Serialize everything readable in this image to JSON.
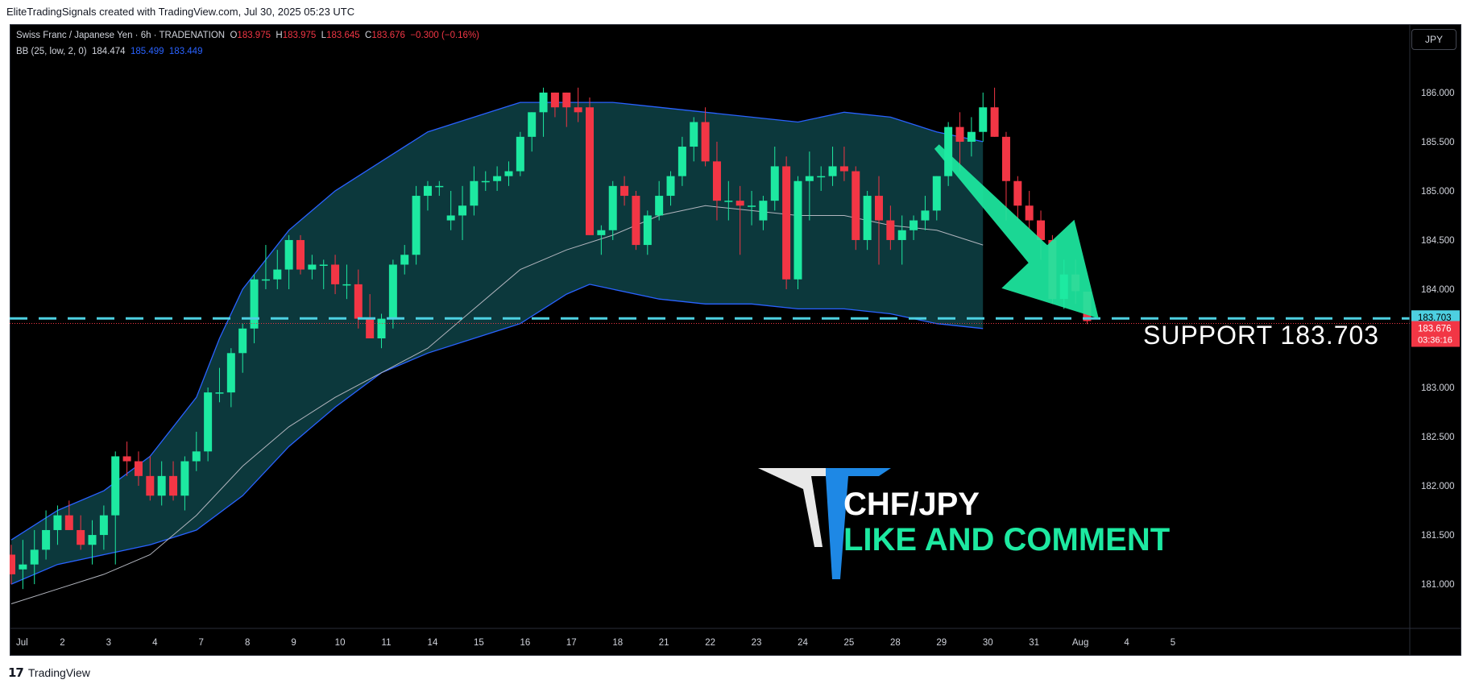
{
  "header": {
    "attribution": "EliteTradingSignals created with TradingView.com, Jul 30, 2025 05:23 UTC"
  },
  "legend": {
    "symbol": "Swiss Franc / Japanese Yen · 6h · TRADENATION",
    "o_label": "O",
    "o": "183.975",
    "h_label": "H",
    "h": "183.975",
    "l_label": "L",
    "l": "183.645",
    "c_label": "C",
    "c": "183.676",
    "change": "−0.300 (−0.16%)",
    "bb_label": "BB (25, low, 2, 0)",
    "bb_basis": "184.474",
    "bb_upper": "185.499",
    "bb_lower": "183.449"
  },
  "currency_button": "JPY",
  "price_tags": {
    "support_tag": "183.703",
    "last_price": "183.676",
    "countdown": "03:36:16"
  },
  "annotations": {
    "support_text": "SUPPORT  183.703",
    "brand_pair": "CHF/JPY",
    "brand_cta": "LIKE AND COMMENT"
  },
  "footer": {
    "logo": "17",
    "text": "TradingView"
  },
  "colors": {
    "up": "#1de9a1",
    "down": "#f23645",
    "band_fill": "#0d3b3f",
    "band_line": "#2962ff",
    "basis": "#b2b5be",
    "support": "#4dd0e1",
    "arrow": "#1de9a1",
    "background": "#000000"
  },
  "chart_data": {
    "type": "candlestick",
    "title": "Swiss Franc / Japanese Yen · 6h · TRADENATION",
    "timeframe": "6h",
    "y_ticks": [
      181.0,
      181.5,
      182.0,
      182.5,
      183.0,
      183.5,
      184.0,
      184.5,
      185.0,
      185.5,
      186.0
    ],
    "ylim": [
      180.55,
      186.45
    ],
    "x_tick_labels": [
      "Jul",
      "2",
      "3",
      "4",
      "7",
      "8",
      "9",
      "10",
      "11",
      "14",
      "15",
      "16",
      "17",
      "18",
      "21",
      "22",
      "23",
      "24",
      "25",
      "28",
      "29",
      "30",
      "31",
      "Aug",
      "4",
      "5"
    ],
    "x_tick_index": [
      0,
      4,
      8,
      12,
      16,
      20,
      24,
      28,
      32,
      36,
      40,
      44,
      48,
      52,
      56,
      60,
      64,
      68,
      72,
      76,
      80,
      84,
      88,
      92,
      96,
      100
    ],
    "support_level": 183.703,
    "last_price": 183.676,
    "candles": [
      {
        "o": 181.3,
        "h": 181.4,
        "l": 181.0,
        "c": 181.1
      },
      {
        "o": 181.15,
        "h": 181.45,
        "l": 180.95,
        "c": 181.2
      },
      {
        "o": 181.2,
        "h": 181.55,
        "l": 181.0,
        "c": 181.35
      },
      {
        "o": 181.35,
        "h": 181.75,
        "l": 181.25,
        "c": 181.55
      },
      {
        "o": 181.55,
        "h": 181.8,
        "l": 181.4,
        "c": 181.7
      },
      {
        "o": 181.7,
        "h": 181.85,
        "l": 181.55,
        "c": 181.55
      },
      {
        "o": 181.55,
        "h": 181.7,
        "l": 181.35,
        "c": 181.4
      },
      {
        "o": 181.4,
        "h": 181.65,
        "l": 181.2,
        "c": 181.5
      },
      {
        "o": 181.5,
        "h": 181.8,
        "l": 181.35,
        "c": 181.7
      },
      {
        "o": 181.7,
        "h": 182.35,
        "l": 181.2,
        "c": 182.3
      },
      {
        "o": 182.3,
        "h": 182.45,
        "l": 182.1,
        "c": 182.25
      },
      {
        "o": 182.25,
        "h": 182.35,
        "l": 182.0,
        "c": 182.1
      },
      {
        "o": 182.1,
        "h": 182.3,
        "l": 181.85,
        "c": 181.9
      },
      {
        "o": 181.9,
        "h": 182.25,
        "l": 181.8,
        "c": 182.1
      },
      {
        "o": 182.1,
        "h": 182.25,
        "l": 181.85,
        "c": 181.9
      },
      {
        "o": 181.9,
        "h": 182.3,
        "l": 181.75,
        "c": 182.25
      },
      {
        "o": 182.25,
        "h": 182.55,
        "l": 182.15,
        "c": 182.35
      },
      {
        "o": 182.35,
        "h": 183.0,
        "l": 182.25,
        "c": 182.95
      },
      {
        "o": 182.95,
        "h": 183.2,
        "l": 182.85,
        "c": 182.95
      },
      {
        "o": 182.95,
        "h": 183.4,
        "l": 182.8,
        "c": 183.35
      },
      {
        "o": 183.35,
        "h": 183.65,
        "l": 183.15,
        "c": 183.6
      },
      {
        "o": 183.6,
        "h": 184.15,
        "l": 183.45,
        "c": 184.1
      },
      {
        "o": 184.1,
        "h": 184.45,
        "l": 184.0,
        "c": 184.1
      },
      {
        "o": 184.1,
        "h": 184.4,
        "l": 184.0,
        "c": 184.2
      },
      {
        "o": 184.2,
        "h": 184.55,
        "l": 184.0,
        "c": 184.5
      },
      {
        "o": 184.5,
        "h": 184.55,
        "l": 184.15,
        "c": 184.2
      },
      {
        "o": 184.2,
        "h": 184.35,
        "l": 184.1,
        "c": 184.25
      },
      {
        "o": 184.25,
        "h": 184.3,
        "l": 184.0,
        "c": 184.25
      },
      {
        "o": 184.25,
        "h": 184.35,
        "l": 183.95,
        "c": 184.05
      },
      {
        "o": 184.05,
        "h": 184.25,
        "l": 183.9,
        "c": 184.05
      },
      {
        "o": 184.05,
        "h": 184.2,
        "l": 183.6,
        "c": 183.7
      },
      {
        "o": 183.7,
        "h": 183.95,
        "l": 183.55,
        "c": 183.5
      },
      {
        "o": 183.5,
        "h": 183.75,
        "l": 183.4,
        "c": 183.7
      },
      {
        "o": 183.7,
        "h": 184.3,
        "l": 183.6,
        "c": 184.25
      },
      {
        "o": 184.25,
        "h": 184.45,
        "l": 184.15,
        "c": 184.35
      },
      {
        "o": 184.35,
        "h": 185.05,
        "l": 184.25,
        "c": 184.95
      },
      {
        "o": 184.95,
        "h": 185.1,
        "l": 184.8,
        "c": 185.05
      },
      {
        "o": 185.05,
        "h": 185.1,
        "l": 184.95,
        "c": 185.05
      },
      {
        "o": 184.7,
        "h": 185.0,
        "l": 184.6,
        "c": 184.75
      },
      {
        "o": 184.75,
        "h": 185.05,
        "l": 184.5,
        "c": 184.85
      },
      {
        "o": 184.85,
        "h": 185.25,
        "l": 184.75,
        "c": 185.1
      },
      {
        "o": 185.1,
        "h": 185.2,
        "l": 185.0,
        "c": 185.1
      },
      {
        "o": 185.1,
        "h": 185.25,
        "l": 185.0,
        "c": 185.15
      },
      {
        "o": 185.15,
        "h": 185.3,
        "l": 185.05,
        "c": 185.2
      },
      {
        "o": 185.2,
        "h": 185.6,
        "l": 185.15,
        "c": 185.55
      },
      {
        "o": 185.55,
        "h": 185.8,
        "l": 185.4,
        "c": 185.8
      },
      {
        "o": 185.8,
        "h": 186.05,
        "l": 185.55,
        "c": 186.0
      },
      {
        "o": 186.0,
        "h": 186.0,
        "l": 185.75,
        "c": 185.85
      },
      {
        "o": 186.0,
        "h": 186.0,
        "l": 185.65,
        "c": 185.85
      },
      {
        "o": 185.85,
        "h": 186.05,
        "l": 185.7,
        "c": 185.8
      },
      {
        "o": 185.85,
        "h": 185.95,
        "l": 184.55,
        "c": 184.55
      },
      {
        "o": 184.55,
        "h": 184.65,
        "l": 184.35,
        "c": 184.6
      },
      {
        "o": 184.6,
        "h": 185.1,
        "l": 184.5,
        "c": 185.05
      },
      {
        "o": 185.05,
        "h": 185.15,
        "l": 184.85,
        "c": 184.95
      },
      {
        "o": 184.95,
        "h": 185.0,
        "l": 184.4,
        "c": 184.45
      },
      {
        "o": 184.45,
        "h": 184.8,
        "l": 184.35,
        "c": 184.75
      },
      {
        "o": 184.75,
        "h": 185.1,
        "l": 184.7,
        "c": 184.95
      },
      {
        "o": 184.95,
        "h": 185.2,
        "l": 184.85,
        "c": 185.15
      },
      {
        "o": 185.15,
        "h": 185.55,
        "l": 185.05,
        "c": 185.45
      },
      {
        "o": 185.45,
        "h": 185.75,
        "l": 185.3,
        "c": 185.7
      },
      {
        "o": 185.7,
        "h": 185.85,
        "l": 185.25,
        "c": 185.3
      },
      {
        "o": 185.3,
        "h": 185.5,
        "l": 184.7,
        "c": 184.9
      },
      {
        "o": 184.9,
        "h": 185.1,
        "l": 184.7,
        "c": 184.9
      },
      {
        "o": 184.9,
        "h": 185.05,
        "l": 184.35,
        "c": 184.85
      },
      {
        "o": 184.85,
        "h": 185.0,
        "l": 184.65,
        "c": 184.85
      },
      {
        "o": 184.7,
        "h": 184.95,
        "l": 184.6,
        "c": 184.9
      },
      {
        "o": 184.9,
        "h": 185.45,
        "l": 184.8,
        "c": 185.25
      },
      {
        "o": 185.25,
        "h": 185.35,
        "l": 184.0,
        "c": 184.1
      },
      {
        "o": 184.1,
        "h": 185.15,
        "l": 184.0,
        "c": 185.1
      },
      {
        "o": 185.1,
        "h": 185.4,
        "l": 184.7,
        "c": 185.15
      },
      {
        "o": 185.15,
        "h": 185.25,
        "l": 185.0,
        "c": 185.15
      },
      {
        "o": 185.15,
        "h": 185.45,
        "l": 185.05,
        "c": 185.25
      },
      {
        "o": 185.25,
        "h": 185.45,
        "l": 185.1,
        "c": 185.2
      },
      {
        "o": 185.2,
        "h": 185.25,
        "l": 184.4,
        "c": 184.5
      },
      {
        "o": 184.5,
        "h": 185.0,
        "l": 184.4,
        "c": 184.95
      },
      {
        "o": 184.95,
        "h": 185.15,
        "l": 184.25,
        "c": 184.7
      },
      {
        "o": 184.7,
        "h": 184.85,
        "l": 184.4,
        "c": 184.5
      },
      {
        "o": 184.5,
        "h": 184.75,
        "l": 184.25,
        "c": 184.6
      },
      {
        "o": 184.6,
        "h": 184.75,
        "l": 184.5,
        "c": 184.7
      },
      {
        "o": 184.7,
        "h": 184.95,
        "l": 184.6,
        "c": 184.8
      },
      {
        "o": 184.8,
        "h": 185.15,
        "l": 184.7,
        "c": 185.15
      },
      {
        "o": 185.15,
        "h": 185.7,
        "l": 185.05,
        "c": 185.65
      },
      {
        "o": 185.65,
        "h": 185.8,
        "l": 185.2,
        "c": 185.5
      },
      {
        "o": 185.5,
        "h": 185.75,
        "l": 185.35,
        "c": 185.6
      },
      {
        "o": 185.6,
        "h": 186.0,
        "l": 185.5,
        "c": 185.85
      },
      {
        "o": 185.85,
        "h": 186.05,
        "l": 185.55,
        "c": 185.55
      },
      {
        "o": 185.55,
        "h": 185.6,
        "l": 184.7,
        "c": 185.1
      },
      {
        "o": 185.1,
        "h": 185.15,
        "l": 184.7,
        "c": 184.85
      },
      {
        "o": 184.85,
        "h": 185.0,
        "l": 184.6,
        "c": 184.7
      },
      {
        "o": 184.7,
        "h": 184.8,
        "l": 184.3,
        "c": 184.5
      },
      {
        "o": 184.5,
        "h": 184.55,
        "l": 183.85,
        "c": 183.9
      },
      {
        "o": 183.9,
        "h": 184.3,
        "l": 183.8,
        "c": 184.15
      },
      {
        "o": 184.15,
        "h": 184.3,
        "l": 183.85,
        "c": 183.98
      },
      {
        "o": 183.975,
        "h": 183.975,
        "l": 183.645,
        "c": 183.676
      }
    ],
    "bb_upper_pts": [
      [
        0,
        181.45
      ],
      [
        4,
        181.75
      ],
      [
        8,
        181.95
      ],
      [
        12,
        182.3
      ],
      [
        16,
        182.9
      ],
      [
        18,
        183.5
      ],
      [
        20,
        184.0
      ],
      [
        24,
        184.6
      ],
      [
        28,
        185.0
      ],
      [
        32,
        185.3
      ],
      [
        36,
        185.6
      ],
      [
        40,
        185.75
      ],
      [
        44,
        185.9
      ],
      [
        48,
        185.9
      ],
      [
        52,
        185.9
      ],
      [
        56,
        185.85
      ],
      [
        60,
        185.8
      ],
      [
        64,
        185.75
      ],
      [
        68,
        185.7
      ],
      [
        72,
        185.8
      ],
      [
        76,
        185.75
      ],
      [
        80,
        185.6
      ],
      [
        84,
        185.5
      ]
    ],
    "bb_lower_pts": [
      [
        0,
        181.0
      ],
      [
        4,
        181.2
      ],
      [
        8,
        181.3
      ],
      [
        12,
        181.4
      ],
      [
        16,
        181.55
      ],
      [
        20,
        181.9
      ],
      [
        24,
        182.4
      ],
      [
        28,
        182.8
      ],
      [
        32,
        183.15
      ],
      [
        36,
        183.35
      ],
      [
        40,
        183.5
      ],
      [
        44,
        183.65
      ],
      [
        48,
        183.95
      ],
      [
        50,
        184.05
      ],
      [
        52,
        184.0
      ],
      [
        56,
        183.9
      ],
      [
        60,
        183.85
      ],
      [
        64,
        183.85
      ],
      [
        68,
        183.8
      ],
      [
        72,
        183.8
      ],
      [
        76,
        183.75
      ],
      [
        80,
        183.65
      ],
      [
        84,
        183.6
      ]
    ],
    "bb_basis_pts": [
      [
        0,
        180.8
      ],
      [
        4,
        180.95
      ],
      [
        8,
        181.1
      ],
      [
        12,
        181.3
      ],
      [
        16,
        181.7
      ],
      [
        20,
        182.2
      ],
      [
        24,
        182.6
      ],
      [
        28,
        182.9
      ],
      [
        32,
        183.15
      ],
      [
        36,
        183.4
      ],
      [
        40,
        183.8
      ],
      [
        44,
        184.2
      ],
      [
        48,
        184.4
      ],
      [
        52,
        184.55
      ],
      [
        56,
        184.75
      ],
      [
        60,
        184.85
      ],
      [
        64,
        184.8
      ],
      [
        68,
        184.75
      ],
      [
        72,
        184.75
      ],
      [
        76,
        184.65
      ],
      [
        80,
        184.6
      ],
      [
        84,
        184.45
      ]
    ],
    "annotation_arrow": {
      "from": [
        80,
        185.45
      ],
      "to": [
        94,
        183.703
      ]
    }
  }
}
